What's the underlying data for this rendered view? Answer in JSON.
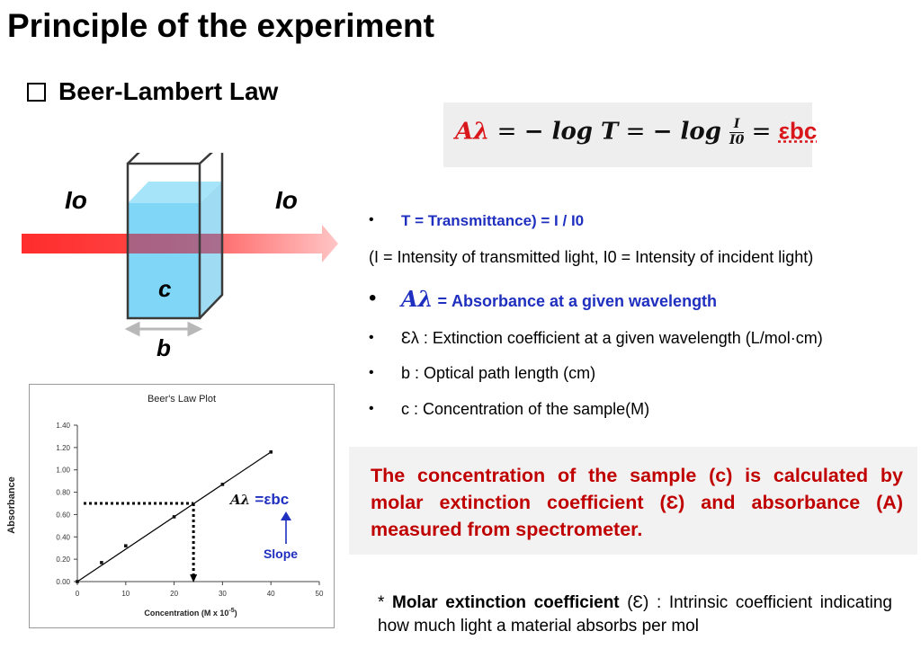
{
  "slide": {
    "title": "Principle of the experiment",
    "subtitle": "Beer-Lambert Law",
    "formula": {
      "a_lambda": "Aλ",
      "eq1": " = ",
      "neg_log_t": "− log T",
      "eq2": " = ",
      "neg_log": "− log",
      "frac_num": "I",
      "frac_den": "I0",
      "eq3": " = ",
      "ebc": "εbc"
    },
    "cuvette": {
      "i_in": "Io",
      "i_out": "Io",
      "c_label": "c",
      "b_label": "b"
    },
    "bullets": {
      "b1": "T = Transmittance) = I / I0",
      "b1_note": "(I = Intensity of transmitted light, I0 = Intensity of incident light)",
      "b2_symbol": "Aλ",
      "b2_text": " = Absorbance at a given wavelength",
      "b3": "Ɛλ : Extinction coefficient at a given wavelength (L/mol·cm)",
      "b4": "b : Optical path length (cm)",
      "b5": "c : Concentration of the sample(M)"
    },
    "conclusion": "The concentration of the sample (c) is calculated by molar extinction coefficient (Ɛ) and absorbance (A) measured from spectrometer.",
    "note": {
      "prefix": "* ",
      "bold": "Molar extinction coefficient",
      "rest": " (Ɛ) : Intrinsic coefficient indicating how much light a material absorbs per mol"
    },
    "colors": {
      "title": "#000000",
      "formula": "#d9161a",
      "blue_text": "#1f2fbf",
      "conclusion": "#c00000",
      "liquid": "#7fd6f6",
      "beam": "#ff2a2a"
    }
  },
  "chart_data": {
    "type": "scatter",
    "title": "Beer's Law Plot",
    "xlabel": "Concentration (M x 10",
    "xlabel_exp": "-5",
    "xlabel_close": ")",
    "ylabel": "Absorbance",
    "xlim": [
      0,
      50
    ],
    "ylim": [
      0,
      1.4
    ],
    "xticks": [
      0,
      10,
      20,
      30,
      40,
      50
    ],
    "yticks": [
      0.0,
      0.2,
      0.4,
      0.6,
      0.8,
      1.0,
      1.2,
      1.4
    ],
    "xtick_labels": [
      "0",
      "10",
      "20",
      "30",
      "40",
      "50"
    ],
    "ytick_labels": [
      "0.00",
      "0.20",
      "0.40",
      "0.60",
      "0.80",
      "1.00",
      "1.20",
      "1.40"
    ],
    "points": [
      {
        "x": 0,
        "y": 0.0
      },
      {
        "x": 5,
        "y": 0.17
      },
      {
        "x": 10,
        "y": 0.32
      },
      {
        "x": 20,
        "y": 0.58
      },
      {
        "x": 30,
        "y": 0.87
      },
      {
        "x": 40,
        "y": 1.16
      }
    ],
    "fit_line": {
      "x": [
        0,
        40
      ],
      "y": [
        0.0,
        1.16
      ]
    },
    "reading": {
      "x": 24,
      "y": 0.7
    },
    "annotation_formula": "Aλ =εbc",
    "annotation_slope": "Slope",
    "grid": false
  }
}
